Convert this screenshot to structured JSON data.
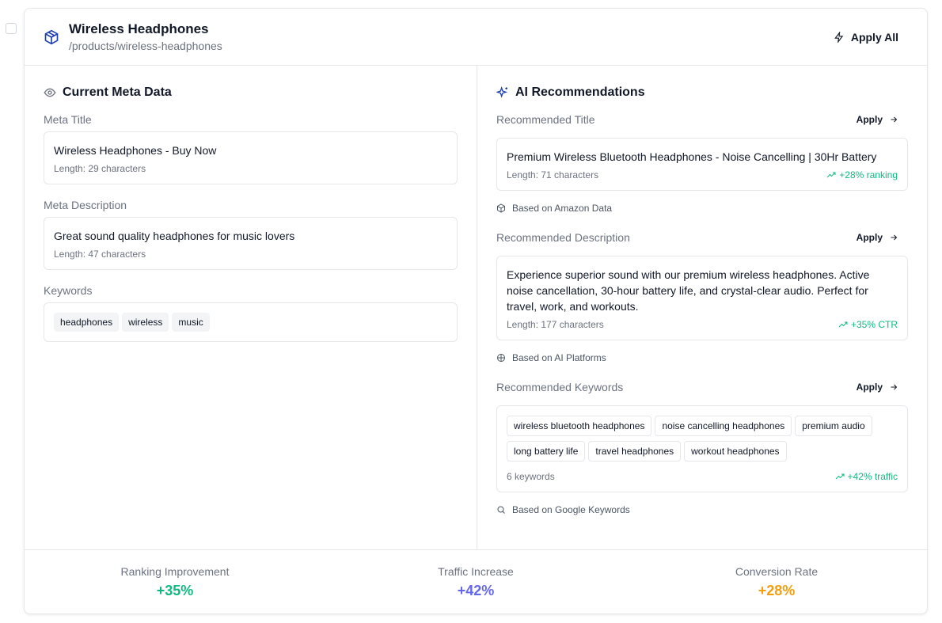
{
  "product": {
    "name": "Wireless Headphones",
    "path": "/products/wireless-headphones",
    "action": "Apply All"
  },
  "current": {
    "heading": "Current Meta Data",
    "fields": [
      {
        "label": "Meta Title",
        "value": "Wireless Headphones - Buy Now",
        "length": "Length: 29 characters"
      },
      {
        "label": "Meta Description",
        "value": "Great sound quality headphones for music lovers",
        "length": "Length: 47 characters"
      }
    ],
    "keywords": {
      "label": "Keywords",
      "items": [
        "headphones",
        "wireless",
        "music"
      ]
    }
  },
  "recommendations": {
    "heading": "AI Recommendations",
    "items": [
      {
        "label": "Recommended Title",
        "action": "Apply",
        "value": "Premium Wireless Bluetooth Headphones - Noise Cancelling | 30Hr Battery",
        "length": "Length: 71 characters",
        "impact": "+28% ranking",
        "source": "Based on Amazon Data"
      },
      {
        "label": "Recommended Description",
        "action": "Apply",
        "value": "Experience superior sound with our premium wireless headphones. Active noise cancellation, 30-hour battery life, and crystal-clear audio. Perfect for travel, work, and workouts.",
        "length": "Length: 177 characters",
        "impact": "+35% CTR",
        "source": "Based on AI Platforms"
      }
    ],
    "keywords": {
      "label": "Recommended Keywords",
      "action": "Apply",
      "items": [
        "wireless bluetooth headphones",
        "noise cancelling headphones",
        "premium audio",
        "long battery life",
        "travel headphones",
        "workout headphones"
      ],
      "count": "6 keywords",
      "impact": "+42% traffic",
      "source": "Based on Google Keywords"
    }
  },
  "metrics": [
    {
      "label": "Ranking Improvement",
      "value": "+35%"
    },
    {
      "label": "Traffic Increase",
      "value": "+42%"
    },
    {
      "label": "Conversion Rate",
      "value": "+28%"
    }
  ]
}
